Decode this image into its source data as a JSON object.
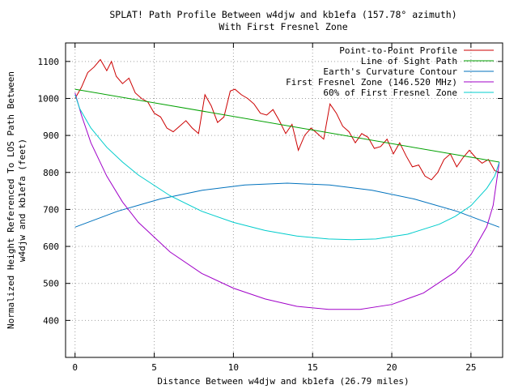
{
  "chart_data": {
    "type": "line",
    "title": "SPLAT! Path Profile Between w4djw and kb1efa (157.78° azimuth)",
    "subtitle": "With First Fresnel Zone",
    "xlabel": "Distance Between w4djw and kb1efa (26.79 miles)",
    "ylabel_line1": "Normalized Height Referenced To LOS Path Between",
    "ylabel_line2": "w4djw and kb1efa (feet)",
    "xlim": [
      -0.6,
      27.0
    ],
    "ylim": [
      300,
      1150
    ],
    "x_ticks": [
      0,
      5,
      10,
      15,
      20,
      25
    ],
    "y_ticks": [
      400,
      500,
      600,
      700,
      800,
      900,
      1000,
      1100
    ],
    "grid": true,
    "legend_position": "top-right",
    "series": [
      {
        "name": "Point-to-Point Profile",
        "color": "#cc0000",
        "x": [
          0,
          0.4,
          0.8,
          1.2,
          1.6,
          1.8,
          2.0,
          2.3,
          2.6,
          3.0,
          3.4,
          3.8,
          4.2,
          4.6,
          5.0,
          5.4,
          5.8,
          6.2,
          6.6,
          7.0,
          7.4,
          7.8,
          8.2,
          8.6,
          9.0,
          9.4,
          9.8,
          10.1,
          10.5,
          10.9,
          11.3,
          11.7,
          12.1,
          12.5,
          12.9,
          13.3,
          13.7,
          14.1,
          14.5,
          14.9,
          15.3,
          15.7,
          16.1,
          16.5,
          16.9,
          17.3,
          17.7,
          18.1,
          18.5,
          18.9,
          19.3,
          19.7,
          20.1,
          20.5,
          20.9,
          21.3,
          21.7,
          22.1,
          22.5,
          22.9,
          23.3,
          23.7,
          24.1,
          24.5,
          24.9,
          25.3,
          25.7,
          26.1,
          26.5,
          26.79
        ],
        "y": [
          1000,
          1030,
          1070,
          1085,
          1105,
          1090,
          1075,
          1100,
          1060,
          1040,
          1055,
          1015,
          1000,
          990,
          960,
          950,
          920,
          910,
          925,
          940,
          920,
          905,
          1010,
          980,
          935,
          950,
          1020,
          1025,
          1010,
          1000,
          985,
          960,
          955,
          970,
          940,
          905,
          930,
          860,
          900,
          920,
          905,
          890,
          985,
          960,
          925,
          910,
          880,
          905,
          895,
          865,
          870,
          890,
          850,
          880,
          845,
          815,
          820,
          790,
          780,
          800,
          835,
          850,
          815,
          840,
          860,
          840,
          825,
          835,
          805,
          800
        ]
      },
      {
        "name": "Line of Sight Path",
        "color": "#00a000",
        "x": [
          0,
          26.79
        ],
        "y": [
          1025,
          828
        ]
      },
      {
        "name": "Earth's Curvature Contour",
        "color": "#0072bd",
        "x": [
          0,
          2.68,
          5.36,
          8.04,
          10.72,
          13.4,
          16.07,
          18.75,
          21.43,
          24.11,
          26.79
        ],
        "y": [
          652,
          695,
          728,
          752,
          766,
          771,
          766,
          752,
          728,
          695,
          652
        ]
      },
      {
        "name": "First Fresnel Zone (146.520 MHz)",
        "color": "#a000c8",
        "x": [
          0,
          0.4,
          1,
          2,
          3,
          4,
          6,
          8,
          10,
          12,
          14,
          16,
          18,
          20,
          22,
          24,
          25,
          26,
          26.4,
          26.79
        ],
        "y": [
          1015,
          955,
          880,
          790,
          720,
          665,
          585,
          527,
          487,
          458,
          438,
          430,
          430,
          443,
          474,
          531,
          578,
          653,
          711,
          828
        ]
      },
      {
        "name": "60% of First Fresnel Zone",
        "color": "#00cccc",
        "x": [
          0,
          0.3,
          1,
          2,
          3,
          4,
          6,
          8,
          10,
          12,
          14,
          16,
          17.5,
          19,
          21,
          23,
          24,
          25,
          26,
          26.5,
          26.79
        ],
        "y": [
          1010,
          972,
          920,
          868,
          828,
          793,
          737,
          695,
          665,
          643,
          628,
          620,
          618,
          620,
          633,
          660,
          681,
          710,
          757,
          790,
          828
        ]
      }
    ]
  }
}
